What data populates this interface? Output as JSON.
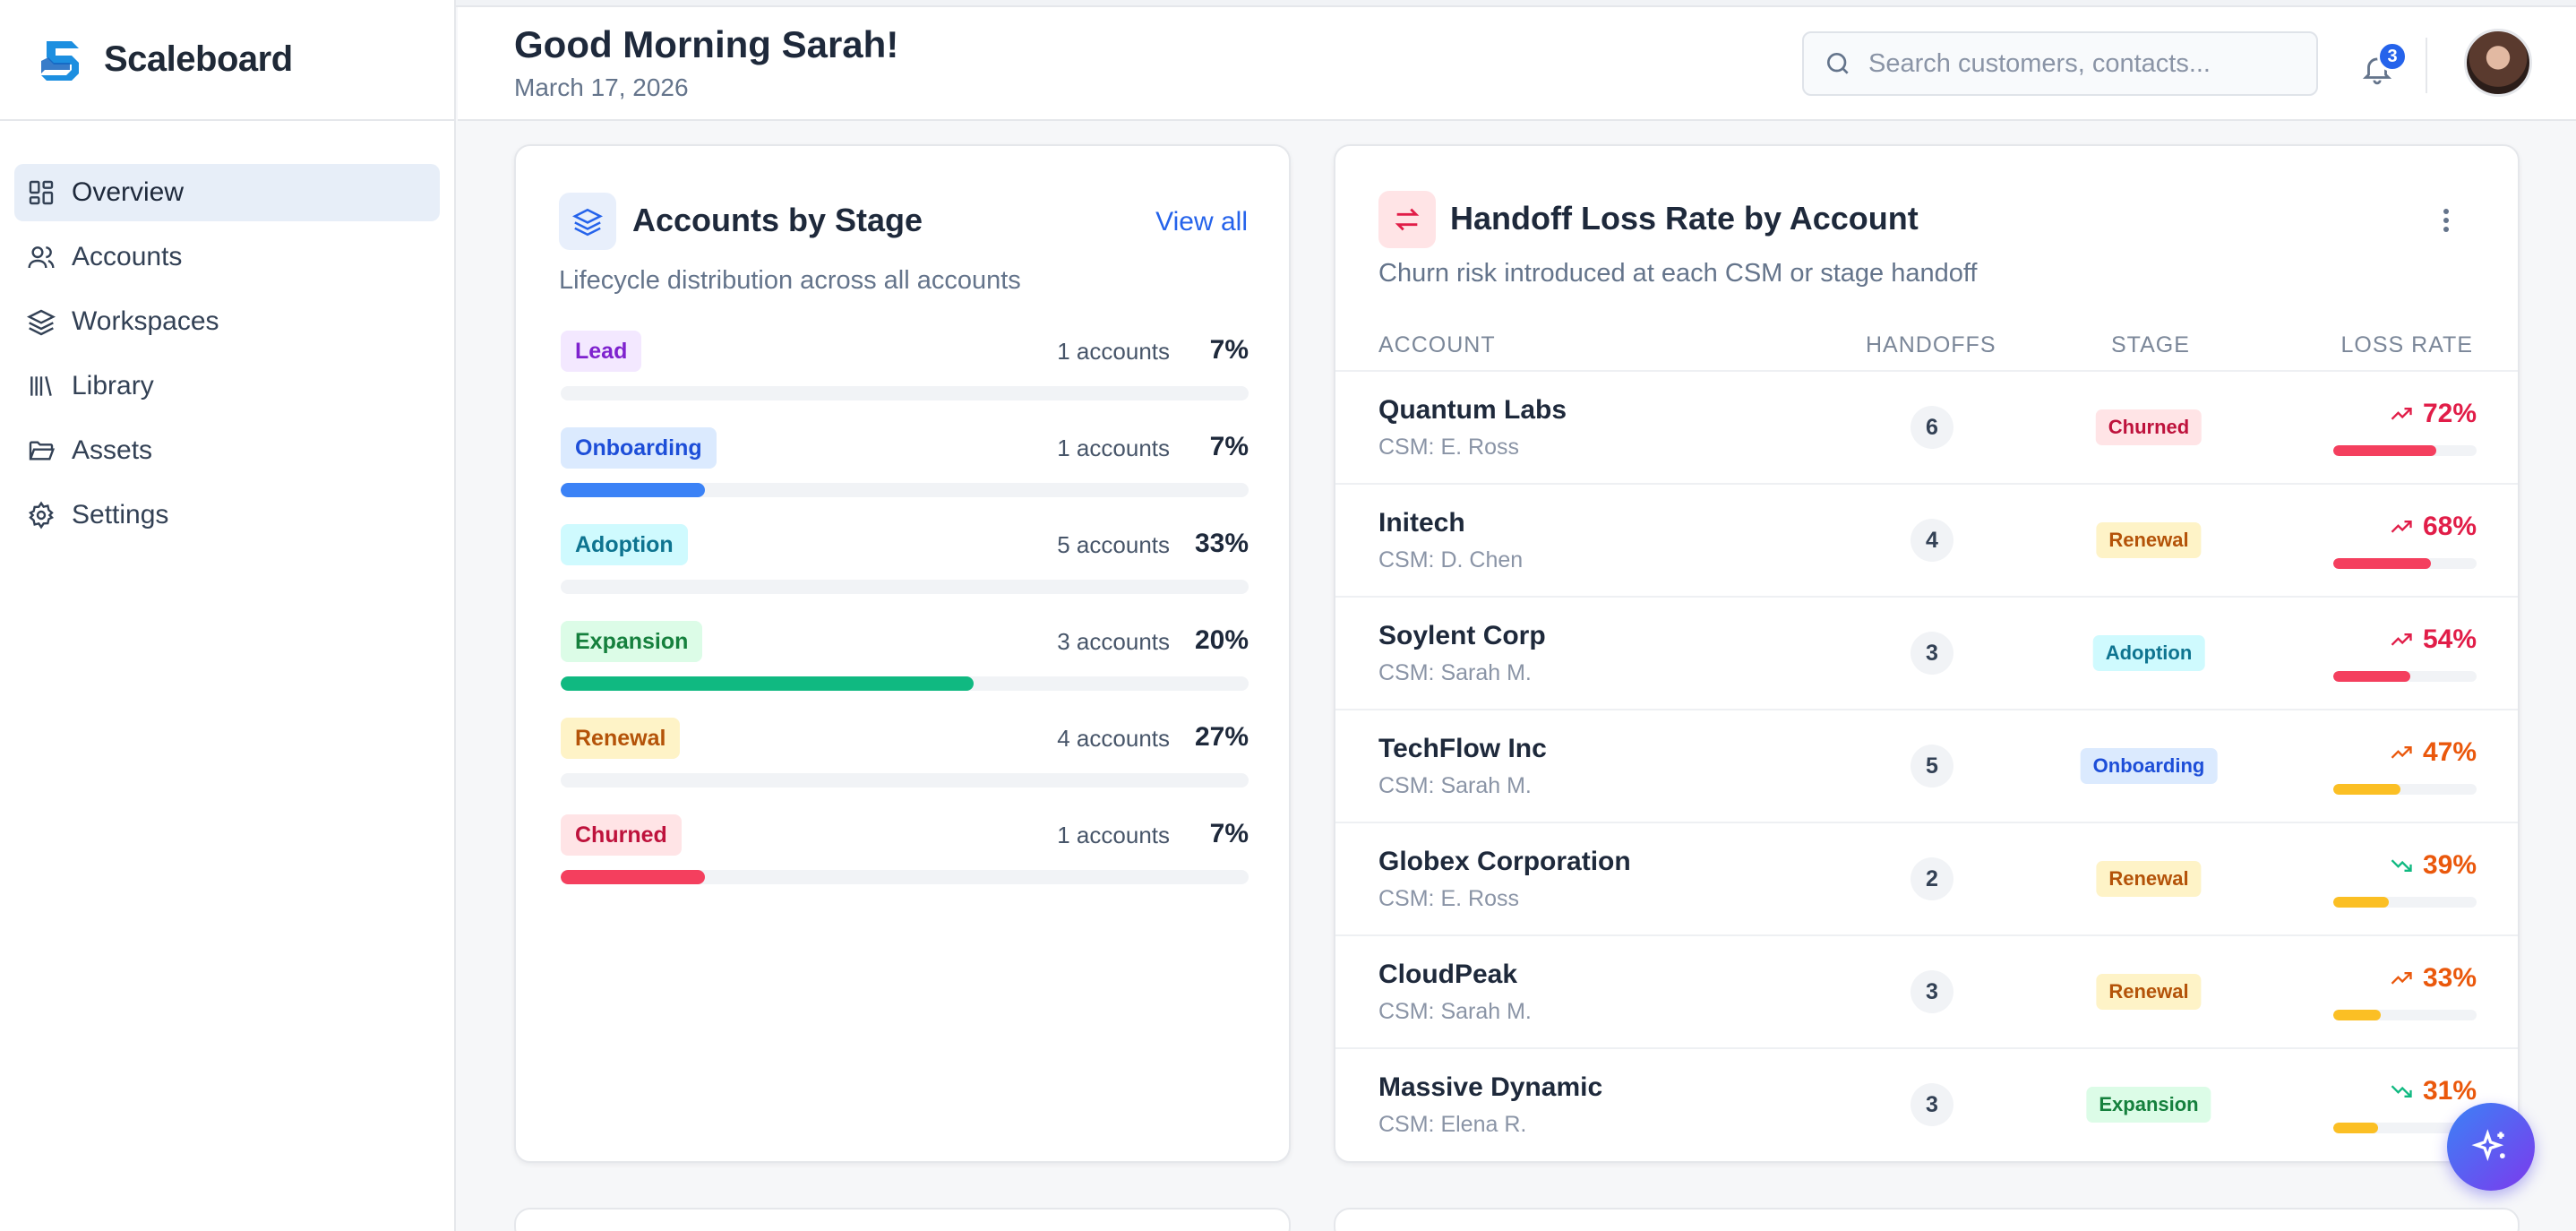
{
  "app": {
    "name": "Scaleboard"
  },
  "nav": {
    "items": [
      {
        "label": "Overview",
        "icon": "grid-icon",
        "active": true
      },
      {
        "label": "Accounts",
        "icon": "users-icon",
        "active": false
      },
      {
        "label": "Workspaces",
        "icon": "layers-icon",
        "active": false
      },
      {
        "label": "Library",
        "icon": "library-icon",
        "active": false
      },
      {
        "label": "Assets",
        "icon": "folder-icon",
        "active": false
      },
      {
        "label": "Settings",
        "icon": "gear-icon",
        "active": false
      }
    ]
  },
  "header": {
    "greeting": "Good Morning Sarah!",
    "date": "March 17, 2026",
    "search_placeholder": "Search customers, contacts...",
    "notifications_count": "3"
  },
  "accounts_by_stage": {
    "title": "Accounts by Stage",
    "subtitle": "Lifecycle distribution across all accounts",
    "view_all": "View all",
    "stages": [
      {
        "name": "Lead",
        "count": "1 accounts",
        "pct": "7%",
        "fill": 0.0,
        "bg": "#f3e8ff",
        "fg": "#7e22ce",
        "bar": "#a855f7"
      },
      {
        "name": "Onboarding",
        "count": "1 accounts",
        "pct": "7%",
        "fill": 0.21,
        "bg": "#dbeafe",
        "fg": "#1d4ed8",
        "bar": "#3b82f6"
      },
      {
        "name": "Adoption",
        "count": "5 accounts",
        "pct": "33%",
        "fill": 0.0,
        "bg": "#cffafe",
        "fg": "#0e7490",
        "bar": "#06b6d4"
      },
      {
        "name": "Expansion",
        "count": "3 accounts",
        "pct": "20%",
        "fill": 0.6,
        "bg": "#dcfce7",
        "fg": "#15803d",
        "bar": "#10b981"
      },
      {
        "name": "Renewal",
        "count": "4 accounts",
        "pct": "27%",
        "fill": 0.0,
        "bg": "#fef3c7",
        "fg": "#b45309",
        "bar": "#f59e0b"
      },
      {
        "name": "Churned",
        "count": "1 accounts",
        "pct": "7%",
        "fill": 0.21,
        "bg": "#ffe4e6",
        "fg": "#be123c",
        "bar": "#f43f5e"
      }
    ]
  },
  "handoff_loss": {
    "title": "Handoff Loss Rate by Account",
    "subtitle": "Churn risk introduced at each CSM or stage handoff",
    "columns": {
      "account": "ACCOUNT",
      "handoffs": "HANDOFFS",
      "stage": "STAGE",
      "loss_rate": "LOSS RATE"
    },
    "rows": [
      {
        "account": "Quantum Labs",
        "csm": "CSM: E. Ross",
        "handoffs": "6",
        "stage": "Churned",
        "loss": "72%",
        "fill": 0.72,
        "trend": "up",
        "color": "#e11d48",
        "bar": "#f43f5e"
      },
      {
        "account": "Initech",
        "csm": "CSM: D. Chen",
        "handoffs": "4",
        "stage": "Renewal",
        "loss": "68%",
        "fill": 0.68,
        "trend": "up",
        "color": "#e11d48",
        "bar": "#f43f5e"
      },
      {
        "account": "Soylent Corp",
        "csm": "CSM: Sarah M.",
        "handoffs": "3",
        "stage": "Adoption",
        "loss": "54%",
        "fill": 0.54,
        "trend": "up",
        "color": "#e11d48",
        "bar": "#f43f5e"
      },
      {
        "account": "TechFlow Inc",
        "csm": "CSM: Sarah M.",
        "handoffs": "5",
        "stage": "Onboarding",
        "loss": "47%",
        "fill": 0.47,
        "trend": "up",
        "color": "#ea580c",
        "bar": "#fbbf24"
      },
      {
        "account": "Globex Corporation",
        "csm": "CSM: E. Ross",
        "handoffs": "2",
        "stage": "Renewal",
        "loss": "39%",
        "fill": 0.39,
        "trend": "down",
        "color": "#ea580c",
        "bar": "#fbbf24"
      },
      {
        "account": "CloudPeak",
        "csm": "CSM: Sarah M.",
        "handoffs": "3",
        "stage": "Renewal",
        "loss": "33%",
        "fill": 0.33,
        "trend": "up",
        "color": "#ea580c",
        "bar": "#fbbf24"
      },
      {
        "account": "Massive Dynamic",
        "csm": "CSM: Elena R.",
        "handoffs": "3",
        "stage": "Expansion",
        "loss": "31%",
        "fill": 0.31,
        "trend": "down",
        "color": "#ea580c",
        "bar": "#fbbf24"
      }
    ]
  },
  "stage_styles": {
    "Churned": {
      "bg": "#ffe4e6",
      "fg": "#be123c"
    },
    "Renewal": {
      "bg": "#fef3c7",
      "fg": "#b45309"
    },
    "Adoption": {
      "bg": "#cffafe",
      "fg": "#0e7490"
    },
    "Onboarding": {
      "bg": "#dbeafe",
      "fg": "#1d4ed8"
    },
    "Expansion": {
      "bg": "#dcfce7",
      "fg": "#15803d"
    }
  },
  "fab": {
    "icon": "sparkles-icon"
  }
}
